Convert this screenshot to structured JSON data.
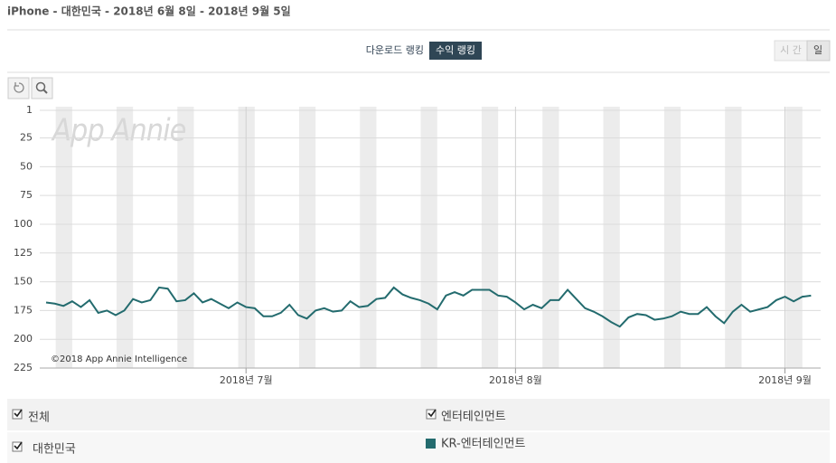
{
  "header": {
    "title": "iPhone - 대한민국 - 2018년 6월 8일 - 2018년 9월 5일"
  },
  "tabs": {
    "download": "다운로드 랭킹",
    "revenue": "수익 랭킹"
  },
  "granularity": {
    "hour": "시 간",
    "day": "일"
  },
  "watermark": "App Annie",
  "copyright": "©2018 App Annie Intelligence",
  "filters": [
    "전체",
    "엔터테인먼트",
    "대한민국"
  ],
  "chart_data": {
    "type": "line",
    "series": [
      {
        "name": "KR-엔터테인먼트",
        "color": "#236b6e",
        "values": [
          168,
          169,
          171,
          167,
          172,
          166,
          177,
          175,
          179,
          175,
          165,
          168,
          166,
          155,
          156,
          167,
          166,
          160,
          168,
          165,
          169,
          173,
          168,
          172,
          173,
          180,
          180,
          177,
          170,
          179,
          182,
          175,
          173,
          176,
          175,
          167,
          172,
          171,
          165,
          164,
          155,
          161,
          164,
          166,
          169,
          174,
          162,
          159,
          162,
          157,
          157,
          157,
          162,
          163,
          168,
          174,
          170,
          173,
          166,
          166,
          157,
          165,
          173,
          176,
          180,
          185,
          189,
          181,
          178,
          179,
          183,
          182,
          180,
          176,
          178,
          178,
          172,
          180,
          186,
          176,
          170,
          176,
          174,
          172,
          166,
          163,
          167,
          163,
          162
        ]
      }
    ],
    "xlim": [
      0,
      89
    ],
    "xticks": [
      {
        "value": 23,
        "label": "2018년 7월"
      },
      {
        "value": 54,
        "label": "2018년 8월"
      },
      {
        "value": 85,
        "label": "2018년 9월"
      }
    ],
    "ylim": [
      1,
      225
    ],
    "y_reversed": true,
    "yticks": [
      1,
      25,
      50,
      75,
      100,
      125,
      150,
      175,
      200,
      225
    ],
    "grid": true
  }
}
